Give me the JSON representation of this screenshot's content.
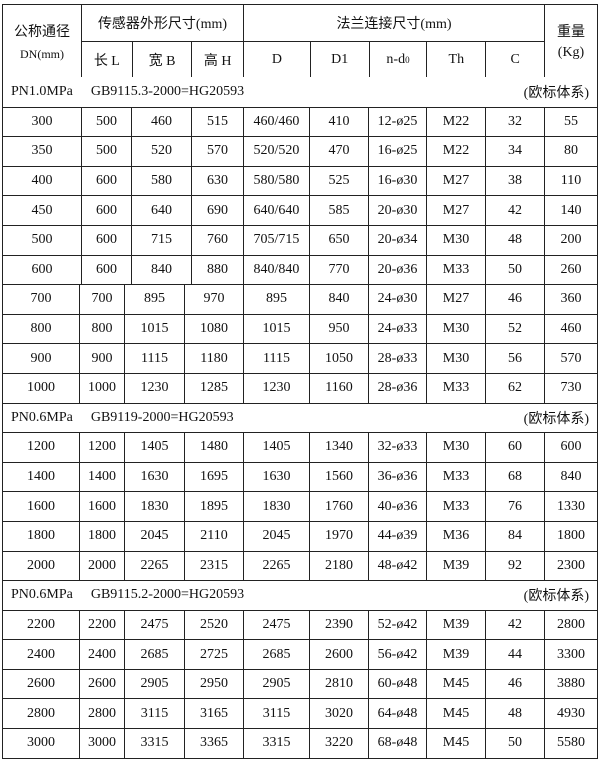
{
  "header": {
    "dn_title": "公称通径",
    "dn_unit": "DN(mm)",
    "sensor_title": "传感器外形尺寸(mm)",
    "sensor_cols": [
      "长 L",
      "宽 B",
      "高 H"
    ],
    "flange_title": "法兰连接尺寸(mm)",
    "flange_cols": [
      "D",
      "D1",
      "n-d",
      "Th",
      "C"
    ],
    "flange_nd_sub": "0",
    "weight_title": "重量",
    "weight_unit": "(Kg)"
  },
  "sections": [
    {
      "pressure": "PN1.0MPa",
      "standard": "GB9115.3-2000=HG20593",
      "system": "(欧标体系)",
      "rows": [
        [
          "300",
          "500",
          "460",
          "515",
          "460/460",
          "410",
          "12-ø25",
          "M22",
          "32",
          "55"
        ],
        [
          "350",
          "500",
          "520",
          "570",
          "520/520",
          "470",
          "16-ø25",
          "M22",
          "34",
          "80"
        ],
        [
          "400",
          "600",
          "580",
          "630",
          "580/580",
          "525",
          "16-ø30",
          "M27",
          "38",
          "110"
        ],
        [
          "450",
          "600",
          "640",
          "690",
          "640/640",
          "585",
          "20-ø30",
          "M27",
          "42",
          "140"
        ],
        [
          "500",
          "600",
          "715",
          "760",
          "705/715",
          "650",
          "20-ø34",
          "M30",
          "48",
          "200"
        ],
        [
          "600",
          "600",
          "840",
          "880",
          "840/840",
          "770",
          "20-ø36",
          "M33",
          "50",
          "260"
        ],
        [
          "700",
          "700",
          "895",
          "970",
          "895",
          "840",
          "24-ø30",
          "M27",
          "46",
          "360"
        ],
        [
          "800",
          "800",
          "1015",
          "1080",
          "1015",
          "950",
          "24-ø33",
          "M30",
          "52",
          "460"
        ],
        [
          "900",
          "900",
          "1115",
          "1180",
          "1115",
          "1050",
          "28-ø33",
          "M30",
          "56",
          "570"
        ],
        [
          "1000",
          "1000",
          "1230",
          "1285",
          "1230",
          "1160",
          "28-ø36",
          "M33",
          "62",
          "730"
        ]
      ]
    },
    {
      "pressure": "PN0.6MPa",
      "standard": "GB9119-2000=HG20593",
      "system": "(欧标体系)",
      "rows": [
        [
          "1200",
          "1200",
          "1405",
          "1480",
          "1405",
          "1340",
          "32-ø33",
          "M30",
          "60",
          "600"
        ],
        [
          "1400",
          "1400",
          "1630",
          "1695",
          "1630",
          "1560",
          "36-ø36",
          "M33",
          "68",
          "840"
        ],
        [
          "1600",
          "1600",
          "1830",
          "1895",
          "1830",
          "1760",
          "40-ø36",
          "M33",
          "76",
          "1330"
        ],
        [
          "1800",
          "1800",
          "2045",
          "2110",
          "2045",
          "1970",
          "44-ø39",
          "M36",
          "84",
          "1800"
        ],
        [
          "2000",
          "2000",
          "2265",
          "2315",
          "2265",
          "2180",
          "48-ø42",
          "M39",
          "92",
          "2300"
        ]
      ]
    },
    {
      "pressure": "PN0.6MPa",
      "standard": "GB9115.2-2000=HG20593",
      "system": "(欧标体系)",
      "rows": [
        [
          "2200",
          "2200",
          "2475",
          "2520",
          "2475",
          "2390",
          "52-ø42",
          "M39",
          "42",
          "2800"
        ],
        [
          "2400",
          "2400",
          "2685",
          "2725",
          "2685",
          "2600",
          "56-ø42",
          "M39",
          "44",
          "3300"
        ],
        [
          "2600",
          "2600",
          "2905",
          "2950",
          "2905",
          "2810",
          "60-ø48",
          "M45",
          "46",
          "3880"
        ],
        [
          "2800",
          "2800",
          "3115",
          "3165",
          "3115",
          "3020",
          "64-ø48",
          "M45",
          "48",
          "4930"
        ],
        [
          "3000",
          "3000",
          "3315",
          "3365",
          "3315",
          "3220",
          "68-ø48",
          "M45",
          "50",
          "5580"
        ]
      ]
    }
  ]
}
